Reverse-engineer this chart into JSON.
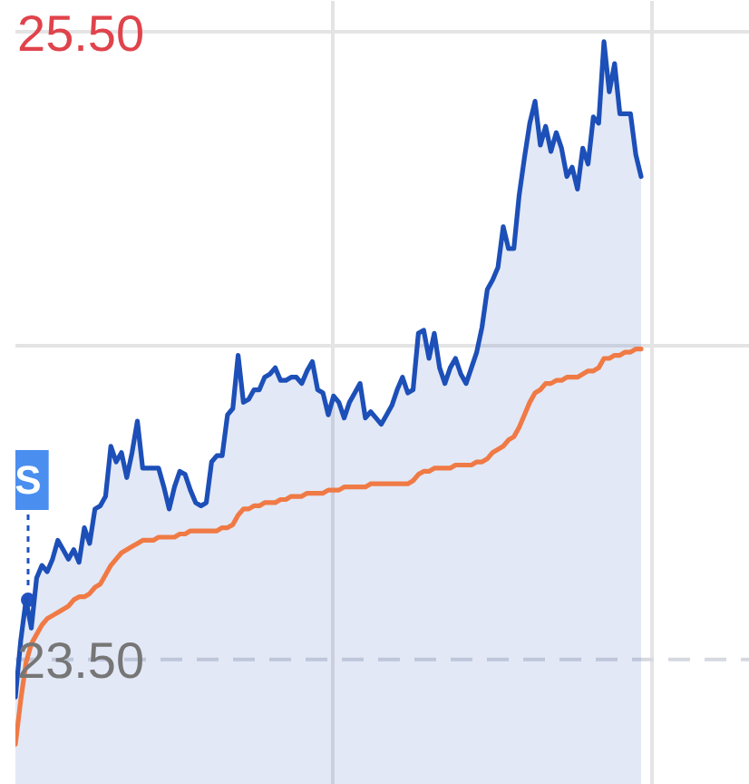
{
  "chart_data": {
    "type": "line",
    "categories": [
      null,
      null,
      null,
      null,
      null,
      null,
      null,
      null,
      null,
      null,
      null,
      null,
      null,
      null,
      null,
      null,
      null,
      null,
      null,
      null,
      null,
      null,
      null,
      null,
      null,
      null,
      null,
      null,
      null,
      null,
      null,
      null,
      null,
      null,
      null,
      null,
      null,
      null,
      null,
      null,
      null,
      null,
      null,
      null,
      null,
      null,
      null,
      null,
      null,
      null,
      null,
      null,
      null,
      null,
      null,
      null,
      null,
      null,
      null,
      null,
      null,
      null,
      null,
      null,
      null,
      null,
      null,
      null,
      null,
      null,
      null,
      null,
      null,
      null,
      null,
      null,
      null,
      null,
      null,
      null,
      null,
      null,
      null,
      null,
      null,
      null,
      null,
      null,
      null,
      null,
      null,
      null,
      null,
      null,
      null,
      null,
      null,
      null,
      null,
      null,
      null,
      null,
      null,
      null,
      null,
      null,
      null,
      null,
      null,
      null,
      null,
      null,
      null,
      null,
      null,
      null,
      null,
      null,
      null
    ],
    "series": [
      {
        "type": "area",
        "color": "#1d4fb8",
        "values": [
          23.38,
          23.56,
          23.69,
          23.6,
          23.76,
          23.8,
          23.78,
          23.82,
          23.88,
          23.85,
          23.82,
          23.85,
          23.81,
          23.92,
          23.87,
          23.98,
          23.99,
          24.02,
          24.18,
          24.13,
          24.16,
          24.08,
          24.16,
          24.26,
          24.11,
          24.11,
          24.11,
          24.11,
          24.05,
          23.98,
          24.05,
          24.1,
          24.09,
          24.04,
          24.0,
          23.99,
          24.0,
          24.13,
          24.15,
          24.15,
          24.28,
          24.3,
          24.47,
          24.32,
          24.33,
          24.36,
          24.36,
          24.4,
          24.41,
          24.43,
          24.39,
          24.39,
          24.4,
          24.4,
          24.38,
          24.42,
          24.45,
          24.36,
          24.35,
          24.28,
          24.34,
          24.32,
          24.27,
          24.32,
          24.35,
          24.38,
          24.27,
          24.29,
          24.27,
          24.25,
          24.28,
          24.31,
          24.36,
          24.4,
          24.35,
          24.36,
          24.54,
          24.55,
          24.46,
          24.54,
          24.43,
          24.38,
          24.43,
          24.46,
          24.41,
          24.38,
          24.43,
          24.48,
          24.56,
          24.68,
          24.71,
          24.75,
          24.88,
          24.81,
          24.81,
          24.98,
          25.1,
          25.21,
          25.28,
          25.14,
          25.2,
          25.12,
          25.18,
          25.13,
          25.04,
          25.07,
          25.0,
          25.13,
          25.08,
          25.23,
          25.21,
          25.47,
          25.31,
          25.4,
          25.24,
          25.24,
          25.24,
          25.11,
          25.04
        ]
      },
      {
        "color": "#f07a45",
        "values": [
          23.23,
          23.37,
          23.49,
          23.55,
          23.58,
          23.61,
          23.63,
          23.64,
          23.65,
          23.66,
          23.67,
          23.69,
          23.7,
          23.7,
          23.71,
          23.73,
          23.74,
          23.77,
          23.8,
          23.82,
          23.84,
          23.85,
          23.86,
          23.87,
          23.88,
          23.88,
          23.88,
          23.89,
          23.89,
          23.89,
          23.89,
          23.9,
          23.9,
          23.91,
          23.91,
          23.91,
          23.91,
          23.91,
          23.91,
          23.92,
          23.92,
          23.93,
          23.96,
          23.98,
          23.98,
          23.99,
          23.99,
          24.0,
          24.0,
          24.0,
          24.01,
          24.01,
          24.02,
          24.02,
          24.02,
          24.03,
          24.03,
          24.03,
          24.03,
          24.04,
          24.04,
          24.04,
          24.05,
          24.05,
          24.05,
          24.05,
          24.05,
          24.06,
          24.06,
          24.06,
          24.06,
          24.06,
          24.06,
          24.06,
          24.06,
          24.07,
          24.09,
          24.1,
          24.1,
          24.11,
          24.11,
          24.11,
          24.11,
          24.12,
          24.12,
          24.12,
          24.12,
          24.13,
          24.13,
          24.14,
          24.16,
          24.17,
          24.18,
          24.2,
          24.21,
          24.24,
          24.28,
          24.32,
          24.35,
          24.36,
          24.38,
          24.38,
          24.39,
          24.39,
          24.4,
          24.4,
          24.4,
          24.41,
          24.42,
          24.42,
          24.43,
          24.46,
          24.46,
          24.47,
          24.47,
          24.48,
          24.48,
          24.49,
          24.49
        ]
      }
    ],
    "ylim": [
      23.1,
      25.6
    ],
    "yticks": [
      {
        "value": 25.5,
        "label": "25.50"
      },
      {
        "value": 24.5,
        "label": null
      },
      {
        "value": 23.5,
        "label": "23.50"
      }
    ],
    "grid": true,
    "ref_lines": [
      {
        "axis": "y",
        "value": 23.5,
        "line_style": "dashed",
        "color": "#d6d9df"
      }
    ],
    "annotations": [
      {
        "text": "S",
        "y": 23.69
      }
    ]
  }
}
